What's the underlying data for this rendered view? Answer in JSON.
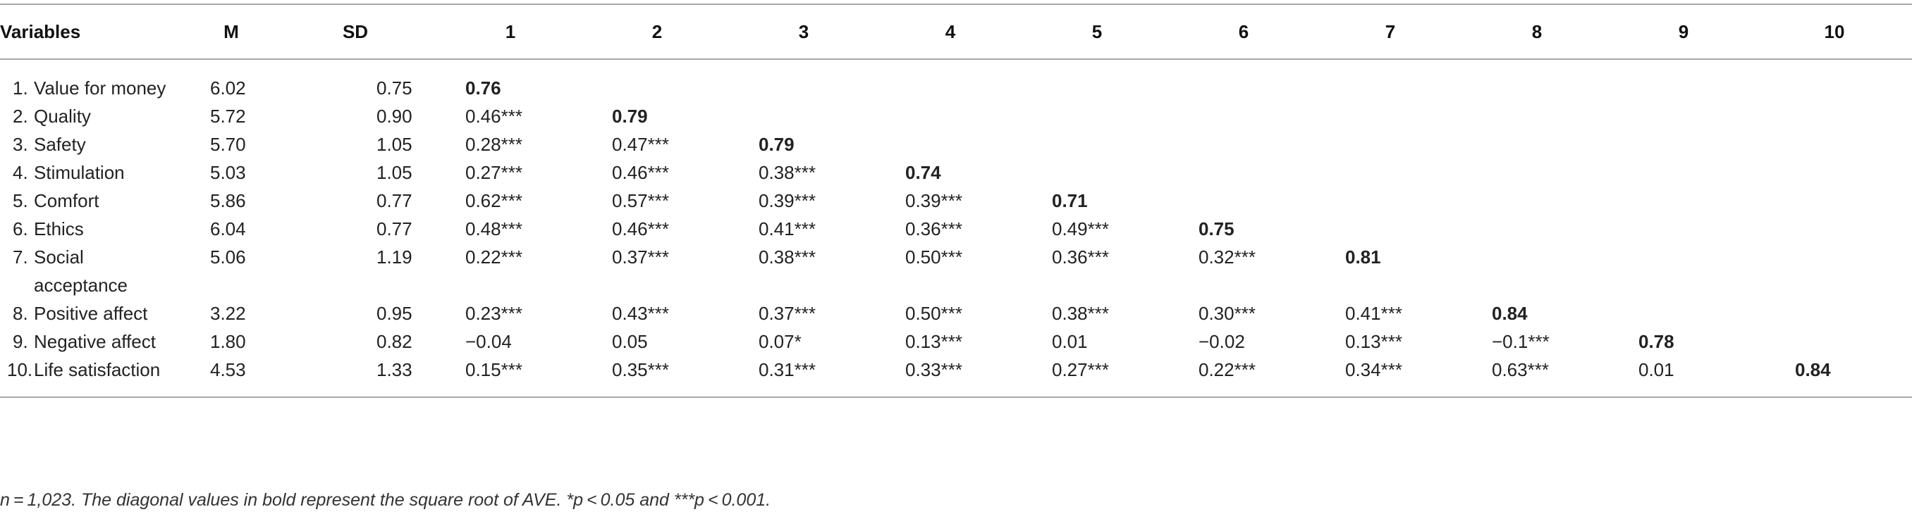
{
  "table": {
    "headers": [
      "Variables",
      "M",
      "SD",
      "1",
      "2",
      "3",
      "4",
      "5",
      "6",
      "7",
      "8",
      "9",
      "10"
    ],
    "rows": [
      {
        "num": "1.",
        "name": "Value for money",
        "m": "6.02",
        "sd": "0.75",
        "cells": [
          "0.76",
          "",
          "",
          "",
          "",
          "",
          "",
          "",
          "",
          ""
        ]
      },
      {
        "num": "2.",
        "name": "Quality",
        "m": "5.72",
        "sd": "0.90",
        "cells": [
          "0.46***",
          "0.79",
          "",
          "",
          "",
          "",
          "",
          "",
          "",
          ""
        ]
      },
      {
        "num": "3.",
        "name": "Safety",
        "m": "5.70",
        "sd": "1.05",
        "cells": [
          "0.28***",
          "0.47***",
          "0.79",
          "",
          "",
          "",
          "",
          "",
          "",
          ""
        ]
      },
      {
        "num": "4.",
        "name": "Stimulation",
        "m": "5.03",
        "sd": "1.05",
        "cells": [
          "0.27***",
          "0.46***",
          "0.38***",
          "0.74",
          "",
          "",
          "",
          "",
          "",
          ""
        ]
      },
      {
        "num": "5.",
        "name": "Comfort",
        "m": "5.86",
        "sd": "0.77",
        "cells": [
          "0.62***",
          "0.57***",
          "0.39***",
          "0.39***",
          "0.71",
          "",
          "",
          "",
          "",
          ""
        ]
      },
      {
        "num": "6.",
        "name": "Ethics",
        "m": "6.04",
        "sd": "0.77",
        "cells": [
          "0.48***",
          "0.46***",
          "0.41***",
          "0.36***",
          "0.49***",
          "0.75",
          "",
          "",
          "",
          ""
        ]
      },
      {
        "num": "7.",
        "name": "Social acceptance",
        "m": "5.06",
        "sd": "1.19",
        "cells": [
          "0.22***",
          "0.37***",
          "0.38***",
          "0.50***",
          "0.36***",
          "0.32***",
          "0.81",
          "",
          "",
          ""
        ]
      },
      {
        "num": "8.",
        "name": "Positive affect",
        "m": "3.22",
        "sd": "0.95",
        "cells": [
          "0.23***",
          "0.43***",
          "0.37***",
          "0.50***",
          "0.38***",
          "0.30***",
          "0.41***",
          "0.84",
          "",
          ""
        ]
      },
      {
        "num": "9.",
        "name": "Negative affect",
        "m": "1.80",
        "sd": "0.82",
        "cells": [
          "−0.04",
          "0.05",
          "0.07*",
          "0.13***",
          "0.01",
          "−0.02",
          "0.13***",
          "−0.1***",
          "0.78",
          ""
        ]
      },
      {
        "num": "10.",
        "name": "Life satisfaction",
        "m": "4.53",
        "sd": "1.33",
        "cells": [
          "0.15***",
          "0.35***",
          "0.31***",
          "0.33***",
          "0.27***",
          "0.22***",
          "0.34***",
          "0.63***",
          "0.01",
          "0.84"
        ]
      }
    ]
  },
  "footnote": "n = 1,023. The diagonal values in bold represent the square root of AVE. *p < 0.05 and ***p < 0.001."
}
